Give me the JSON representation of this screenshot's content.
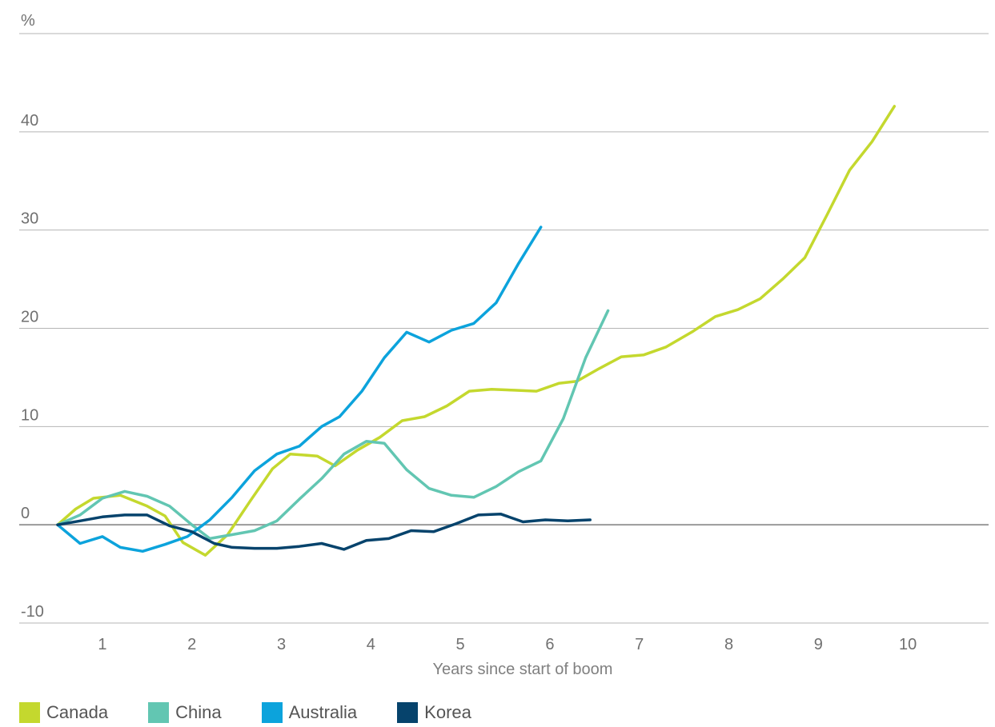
{
  "chart_data": {
    "type": "line",
    "title": "",
    "xlabel": "Years since start of boom",
    "ylabel": "%",
    "xlim": [
      0.5,
      10.5
    ],
    "ylim": [
      -10,
      50
    ],
    "x_ticks": [
      1,
      2,
      3,
      4,
      5,
      6,
      7,
      8,
      9,
      10
    ],
    "y_ticks": [
      -10,
      0,
      10,
      20,
      30,
      40
    ],
    "y_tick_labels": [
      "-10",
      "0",
      "10",
      "20",
      "30",
      "40"
    ],
    "x_tick_labels": [
      "1",
      "2",
      "3",
      "4",
      "5",
      "6",
      "7",
      "8",
      "9",
      "10"
    ],
    "unit_label": "%",
    "grid": true,
    "legend_position": "bottom-left",
    "series": [
      {
        "name": "Canada",
        "color": "#c4d82e",
        "points": [
          [
            0.5,
            0
          ],
          [
            0.7,
            1.6
          ],
          [
            0.9,
            2.7
          ],
          [
            1.2,
            3.0
          ],
          [
            1.5,
            1.9
          ],
          [
            1.7,
            0.9
          ],
          [
            1.9,
            -1.8
          ],
          [
            2.15,
            -3.1
          ],
          [
            2.4,
            -1.0
          ],
          [
            2.65,
            2.4
          ],
          [
            2.9,
            5.7
          ],
          [
            3.1,
            7.2
          ],
          [
            3.4,
            7.0
          ],
          [
            3.6,
            6.0
          ],
          [
            3.85,
            7.6
          ],
          [
            4.1,
            8.9
          ],
          [
            4.35,
            10.6
          ],
          [
            4.6,
            11.0
          ],
          [
            4.85,
            12.1
          ],
          [
            5.1,
            13.6
          ],
          [
            5.35,
            13.8
          ],
          [
            5.6,
            13.7
          ],
          [
            5.85,
            13.6
          ],
          [
            6.1,
            14.4
          ],
          [
            6.3,
            14.6
          ],
          [
            6.55,
            15.9
          ],
          [
            6.8,
            17.1
          ],
          [
            7.05,
            17.3
          ],
          [
            7.3,
            18.1
          ],
          [
            7.6,
            19.7
          ],
          [
            7.85,
            21.2
          ],
          [
            8.1,
            21.9
          ],
          [
            8.35,
            23.0
          ],
          [
            8.6,
            25.0
          ],
          [
            8.85,
            27.2
          ],
          [
            9.1,
            31.6
          ],
          [
            9.35,
            36.1
          ],
          [
            9.6,
            39.0
          ],
          [
            9.85,
            42.6
          ]
        ]
      },
      {
        "name": "China",
        "color": "#62c6b2",
        "points": [
          [
            0.5,
            0
          ],
          [
            0.75,
            1.0
          ],
          [
            1.0,
            2.7
          ],
          [
            1.25,
            3.4
          ],
          [
            1.5,
            2.9
          ],
          [
            1.75,
            1.9
          ],
          [
            2.0,
            0
          ],
          [
            2.2,
            -1.4
          ],
          [
            2.45,
            -1.0
          ],
          [
            2.7,
            -0.6
          ],
          [
            2.95,
            0.4
          ],
          [
            3.2,
            2.6
          ],
          [
            3.45,
            4.7
          ],
          [
            3.7,
            7.2
          ],
          [
            3.95,
            8.5
          ],
          [
            4.15,
            8.3
          ],
          [
            4.4,
            5.6
          ],
          [
            4.65,
            3.7
          ],
          [
            4.9,
            3.0
          ],
          [
            5.15,
            2.8
          ],
          [
            5.4,
            3.9
          ],
          [
            5.65,
            5.4
          ],
          [
            5.9,
            6.5
          ],
          [
            6.15,
            10.8
          ],
          [
            6.4,
            17.0
          ],
          [
            6.65,
            21.8
          ]
        ]
      },
      {
        "name": "Australia",
        "color": "#0ca3dc",
        "points": [
          [
            0.5,
            0
          ],
          [
            0.75,
            -1.9
          ],
          [
            1.0,
            -1.2
          ],
          [
            1.2,
            -2.3
          ],
          [
            1.45,
            -2.7
          ],
          [
            1.7,
            -2.0
          ],
          [
            1.95,
            -1.2
          ],
          [
            2.2,
            0.5
          ],
          [
            2.45,
            2.8
          ],
          [
            2.7,
            5.5
          ],
          [
            2.95,
            7.2
          ],
          [
            3.2,
            8.0
          ],
          [
            3.45,
            10.0
          ],
          [
            3.65,
            11.0
          ],
          [
            3.9,
            13.6
          ],
          [
            4.15,
            17.0
          ],
          [
            4.4,
            19.6
          ],
          [
            4.65,
            18.6
          ],
          [
            4.9,
            19.8
          ],
          [
            5.15,
            20.5
          ],
          [
            5.4,
            22.6
          ],
          [
            5.65,
            26.6
          ],
          [
            5.9,
            30.3
          ]
        ]
      },
      {
        "name": "Korea",
        "color": "#06436c",
        "points": [
          [
            0.5,
            0
          ],
          [
            0.75,
            0.4
          ],
          [
            1.0,
            0.8
          ],
          [
            1.25,
            1.0
          ],
          [
            1.5,
            1.0
          ],
          [
            1.75,
            -0.1
          ],
          [
            2.0,
            -0.7
          ],
          [
            2.25,
            -1.9
          ],
          [
            2.45,
            -2.3
          ],
          [
            2.7,
            -2.4
          ],
          [
            2.95,
            -2.4
          ],
          [
            3.2,
            -2.2
          ],
          [
            3.45,
            -1.9
          ],
          [
            3.7,
            -2.5
          ],
          [
            3.95,
            -1.6
          ],
          [
            4.2,
            -1.4
          ],
          [
            4.45,
            -0.6
          ],
          [
            4.7,
            -0.7
          ],
          [
            4.95,
            0.1
          ],
          [
            5.2,
            1.0
          ],
          [
            5.45,
            1.1
          ],
          [
            5.7,
            0.3
          ],
          [
            5.95,
            0.5
          ],
          [
            6.2,
            0.4
          ],
          [
            6.45,
            0.5
          ]
        ]
      }
    ]
  },
  "legend": {
    "items": [
      {
        "label": "Canada",
        "color": "#c4d82e"
      },
      {
        "label": "China",
        "color": "#62c6b2"
      },
      {
        "label": "Australia",
        "color": "#0ca3dc"
      },
      {
        "label": "Korea",
        "color": "#06436c"
      }
    ]
  }
}
